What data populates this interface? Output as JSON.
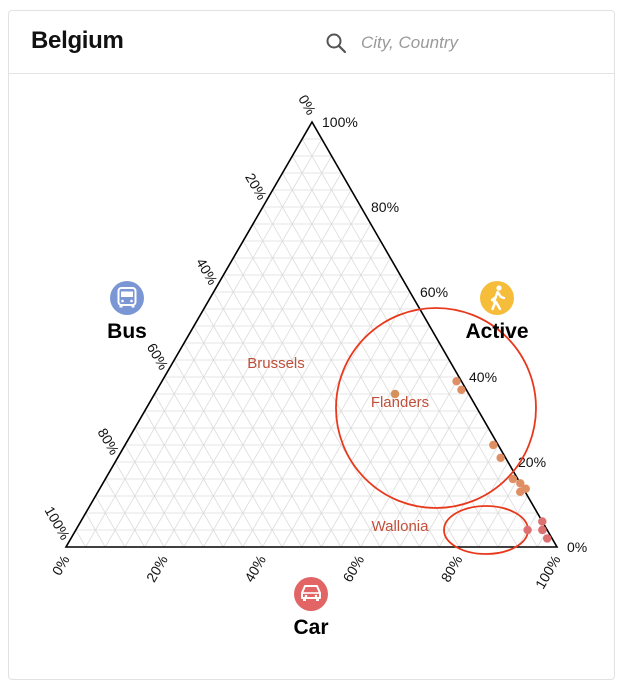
{
  "header": {
    "title": "Belgium",
    "search_placeholder": "City, Country",
    "search_icon": "search-icon"
  },
  "colors": {
    "bus": "#7b96d4",
    "active": "#f5bd3a",
    "car": "#e26464",
    "brussels_point": "#d4925a",
    "flanders_point": "#e08f65",
    "wallonia_point": "#dd7070",
    "region_label": "#c0503a",
    "circle": "#e8391c",
    "grid": "#dcdcdc"
  },
  "chart_data": {
    "type": "ternary",
    "axes": {
      "active": {
        "label": "Active",
        "icon": "walking-person-icon",
        "ticks": [
          "0%",
          "20%",
          "40%",
          "60%",
          "80%",
          "100%"
        ]
      },
      "bus": {
        "label": "Bus",
        "icon": "bus-icon",
        "ticks": [
          "0%",
          "20%",
          "40%",
          "60%",
          "80%",
          "100%"
        ]
      },
      "car": {
        "label": "Car",
        "icon": "car-icon",
        "ticks": [
          "0%",
          "20%",
          "40%",
          "60%",
          "80%",
          "100%"
        ]
      }
    },
    "grid": true,
    "grid_step": 0.04,
    "points": [
      {
        "region": "Brussels",
        "active": 0.36,
        "car": 0.49,
        "bus": 0.15
      },
      {
        "region": "Flanders",
        "active": 0.39,
        "car": 0.6,
        "bus": 0.01
      },
      {
        "region": "Flanders",
        "active": 0.37,
        "car": 0.62,
        "bus": 0.01
      },
      {
        "region": "Flanders",
        "active": 0.24,
        "car": 0.75,
        "bus": 0.01
      },
      {
        "region": "Flanders",
        "active": 0.21,
        "car": 0.78,
        "bus": 0.01
      },
      {
        "region": "Flanders",
        "active": 0.16,
        "car": 0.83,
        "bus": 0.01
      },
      {
        "region": "Flanders",
        "active": 0.13,
        "car": 0.86,
        "bus": 0.01
      },
      {
        "region": "Flanders",
        "active": 0.15,
        "car": 0.85,
        "bus": 0.0
      },
      {
        "region": "Flanders",
        "active": 0.15,
        "car": 0.86,
        "bus": 0.0
      },
      {
        "region": "Wallonia",
        "active": 0.04,
        "car": 0.92,
        "bus": 0.04
      },
      {
        "region": "Wallonia",
        "active": 0.04,
        "car": 0.95,
        "bus": 0.01
      },
      {
        "region": "Wallonia",
        "active": 0.06,
        "car": 0.94,
        "bus": 0.0
      },
      {
        "region": "Wallonia",
        "active": 0.02,
        "car": 0.97,
        "bus": 0.01
      }
    ],
    "regions": [
      {
        "name": "Brussels",
        "label": "Brussels"
      },
      {
        "name": "Flanders",
        "label": "Flanders"
      },
      {
        "name": "Wallonia",
        "label": "Wallonia"
      }
    ]
  }
}
